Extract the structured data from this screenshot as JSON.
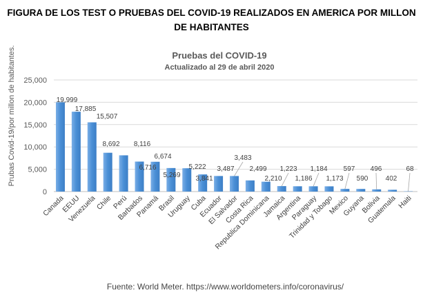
{
  "figure_title": "FIGURA DE LOS TEST O PRUEBAS DEL COVID-19 REALIZADOS EN AMERICA POR MILLON DE HABITANTES",
  "footer": "Fuente: World Meter. https://www.worldometers.info/coronavirus/",
  "chart_data": {
    "type": "bar",
    "title": "Pruebas del COVID-19",
    "subtitle": "Actualizado al 29 de abril 2020",
    "xlabel": "",
    "ylabel": "Prubas Covid-19/por millon de habitantes.",
    "ylim": [
      0,
      25000
    ],
    "yticks": [
      "0",
      "5,000",
      "10,000",
      "15,000",
      "20,000",
      "25,000"
    ],
    "grid": true,
    "bar_color": "#4a8fd6",
    "categories": [
      "Canada",
      "EEUU",
      "Venezuela",
      "Chile",
      "Perú",
      "Barbados",
      "Panamá",
      "Brasil",
      "Uruguay",
      "Cuba",
      "Ecuador",
      "El Salvador",
      "Costa Rica",
      "Republica Dominicana",
      "Jamaica",
      "Argentina",
      "Paraguay",
      "Trinidad y Tobago",
      "Mexico",
      "Guyana",
      "Bolivia",
      "Guatemala",
      "Haiti"
    ],
    "values": [
      19999,
      17885,
      15507,
      8692,
      8116,
      6716,
      6674,
      5269,
      5222,
      3841,
      3487,
      3483,
      2499,
      2210,
      1223,
      1186,
      1184,
      1173,
      597,
      590,
      496,
      402,
      68
    ],
    "data_labels": [
      "19,999",
      "17,885",
      "15,507",
      "8,692",
      "8,116",
      "6,716",
      "6,674",
      "5,269",
      "5,222",
      "3,841",
      "3,487",
      "3,483",
      "2,499",
      "2,210",
      "1,223",
      "1,186",
      "1,184",
      "1,173",
      "597",
      "590",
      "496",
      "402",
      "68"
    ]
  }
}
